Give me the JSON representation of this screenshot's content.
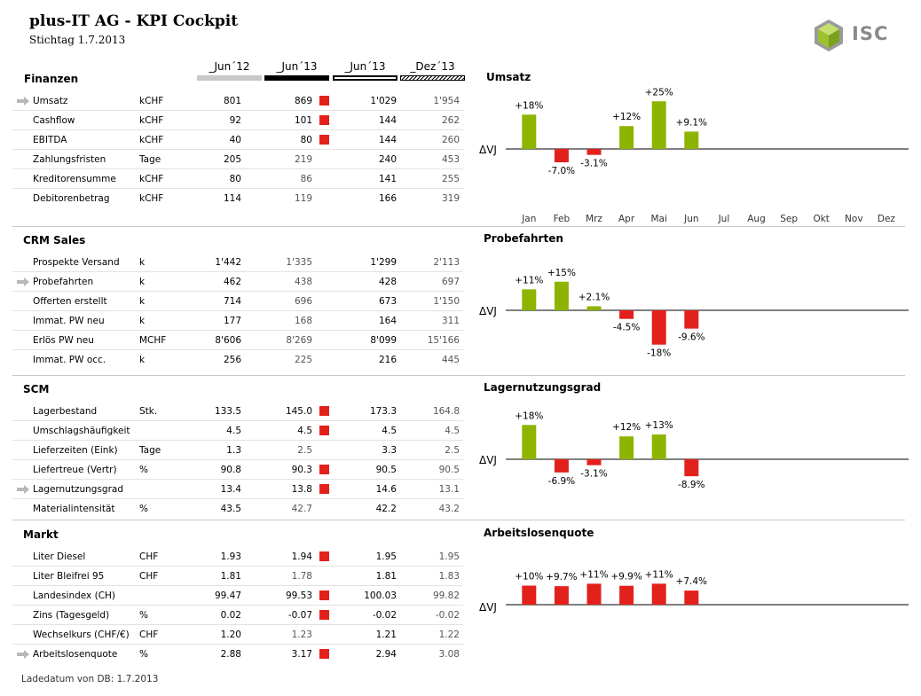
{
  "header": {
    "title": "plus-IT AG - KPI Cockpit",
    "subtitle": "Stichtag 1.7.2013",
    "logo_text": "ISC"
  },
  "columns": [
    "_Jun´12",
    "_Jun´13",
    "_Jun´13",
    "_Dez´13"
  ],
  "axis_label": "ΔVJ",
  "months": [
    "Jan",
    "Feb",
    "Mrz",
    "Apr",
    "Mai",
    "Jun",
    "Jul",
    "Aug",
    "Sep",
    "Okt",
    "Nov",
    "Dez"
  ],
  "colors": {
    "positive": "#8db400",
    "negative": "#e3211c"
  },
  "sections": [
    {
      "title": "Finanzen",
      "rows": [
        {
          "name": "Umsatz",
          "unit": "kCHF",
          "v": [
            "801",
            "869",
            "1'029",
            "1'954"
          ],
          "flag": true,
          "arrow": true
        },
        {
          "name": "Cashflow",
          "unit": "kCHF",
          "v": [
            "92",
            "101",
            "144",
            "262"
          ],
          "flag": true
        },
        {
          "name": "EBITDA",
          "unit": "kCHF",
          "v": [
            "40",
            "80",
            "144",
            "260"
          ],
          "flag": true
        },
        {
          "name": "Zahlungsfristen",
          "unit": "Tage",
          "v": [
            "205",
            "219",
            "240",
            "453"
          ]
        },
        {
          "name": "Kreditorensumme",
          "unit": "kCHF",
          "v": [
            "80",
            "86",
            "141",
            "255"
          ]
        },
        {
          "name": "Debitorenbetrag",
          "unit": "kCHF",
          "v": [
            "114",
            "119",
            "166",
            "319"
          ]
        }
      ]
    },
    {
      "title": "CRM Sales",
      "rows": [
        {
          "name": "Prospekte Versand",
          "unit": "k",
          "v": [
            "1'442",
            "1'335",
            "1'299",
            "2'113"
          ]
        },
        {
          "name": "Probefahrten",
          "unit": "k",
          "v": [
            "462",
            "438",
            "428",
            "697"
          ],
          "arrow": true
        },
        {
          "name": "Offerten erstellt",
          "unit": "k",
          "v": [
            "714",
            "696",
            "673",
            "1'150"
          ]
        },
        {
          "name": "Immat. PW neu",
          "unit": "k",
          "v": [
            "177",
            "168",
            "164",
            "311"
          ]
        },
        {
          "name": "Erlös PW neu",
          "unit": "MCHF",
          "v": [
            "8'606",
            "8'269",
            "8'099",
            "15'166"
          ]
        },
        {
          "name": "Immat. PW occ.",
          "unit": "k",
          "v": [
            "256",
            "225",
            "216",
            "445"
          ]
        }
      ]
    },
    {
      "title": "SCM",
      "rows": [
        {
          "name": "Lagerbestand",
          "unit": "Stk.",
          "v": [
            "133.5",
            "145.0",
            "173.3",
            "164.8"
          ],
          "flag": true
        },
        {
          "name": "Umschlagshäufigkeit",
          "unit": "",
          "v": [
            "4.5",
            "4.5",
            "4.5",
            "4.5"
          ],
          "flag": true
        },
        {
          "name": "Lieferzeiten (Eink)",
          "unit": "Tage",
          "v": [
            "1.3",
            "2.5",
            "3.3",
            "2.5"
          ]
        },
        {
          "name": "Liefertreue (Vertr)",
          "unit": "%",
          "v": [
            "90.8",
            "90.3",
            "90.5",
            "90.5"
          ],
          "flag": true
        },
        {
          "name": "Lagernutzungsgrad",
          "unit": "",
          "v": [
            "13.4",
            "13.8",
            "14.6",
            "13.1"
          ],
          "flag": true,
          "arrow": true
        },
        {
          "name": "Materialintensität",
          "unit": "%",
          "v": [
            "43.5",
            "42.7",
            "42.2",
            "43.2"
          ]
        }
      ]
    },
    {
      "title": "Markt",
      "rows": [
        {
          "name": "Liter Diesel",
          "unit": "CHF",
          "v": [
            "1.93",
            "1.94",
            "1.95",
            "1.95"
          ],
          "flag": true
        },
        {
          "name": "Liter Bleifrei 95",
          "unit": "CHF",
          "v": [
            "1.81",
            "1.78",
            "1.81",
            "1.83"
          ]
        },
        {
          "name": "Landesindex (CH)",
          "unit": "",
          "v": [
            "99.47",
            "99.53",
            "100.03",
            "99.82"
          ],
          "flag": true
        },
        {
          "name": "Zins (Tagesgeld)",
          "unit": "%",
          "v": [
            "0.02",
            "-0.07",
            "-0.02",
            "-0.02"
          ],
          "flag": true
        },
        {
          "name": "Wechselkurs (CHF/€)",
          "unit": "CHF",
          "v": [
            "1.20",
            "1.23",
            "1.21",
            "1.22"
          ]
        },
        {
          "name": "Arbeitslosenquote",
          "unit": "%",
          "v": [
            "2.88",
            "3.17",
            "2.94",
            "3.08"
          ],
          "flag": true,
          "arrow": true
        }
      ]
    }
  ],
  "chart_data": [
    {
      "type": "bar",
      "title": "Umsatz",
      "categories": [
        "Jan",
        "Feb",
        "Mrz",
        "Apr",
        "Mai",
        "Jun",
        "Jul",
        "Aug",
        "Sep",
        "Okt",
        "Nov",
        "Dez"
      ],
      "values": [
        18,
        -7.0,
        -3.1,
        12,
        25,
        9.1
      ],
      "labels": [
        "+18%",
        "-7.0%",
        "-3.1%",
        "+12%",
        "+25%",
        "+9.1%"
      ],
      "ylabel": "ΔVJ"
    },
    {
      "type": "bar",
      "title": "Probefahrten",
      "categories": [
        "Jan",
        "Feb",
        "Mrz",
        "Apr",
        "Mai",
        "Jun"
      ],
      "values": [
        11,
        15,
        2.1,
        -4.5,
        -18,
        -9.6
      ],
      "labels": [
        "+11%",
        "+15%",
        "+2.1%",
        "-4.5%",
        "-18%",
        "-9.6%"
      ],
      "ylabel": "ΔVJ"
    },
    {
      "type": "bar",
      "title": "Lagernutzungsgrad",
      "categories": [
        "Jan",
        "Feb",
        "Mrz",
        "Apr",
        "Mai",
        "Jun"
      ],
      "values": [
        18,
        -6.9,
        -3.1,
        12,
        13,
        -8.9
      ],
      "labels": [
        "+18%",
        "-6.9%",
        "-3.1%",
        "+12%",
        "+13%",
        "-8.9%"
      ],
      "ylabel": "ΔVJ"
    },
    {
      "type": "bar",
      "title": "Arbeitslosenquote",
      "categories": [
        "Jan",
        "Feb",
        "Mrz",
        "Apr",
        "Mai",
        "Jun"
      ],
      "values": [
        10,
        9.7,
        11,
        9.9,
        11,
        7.4
      ],
      "labels": [
        "+10%",
        "+9.7%",
        "+11%",
        "+9.9%",
        "+11%",
        "+7.4%"
      ],
      "ylabel": "ΔVJ",
      "bar_color": "negative"
    }
  ],
  "footer": "Ladedatum von DB: 1.7.2013"
}
